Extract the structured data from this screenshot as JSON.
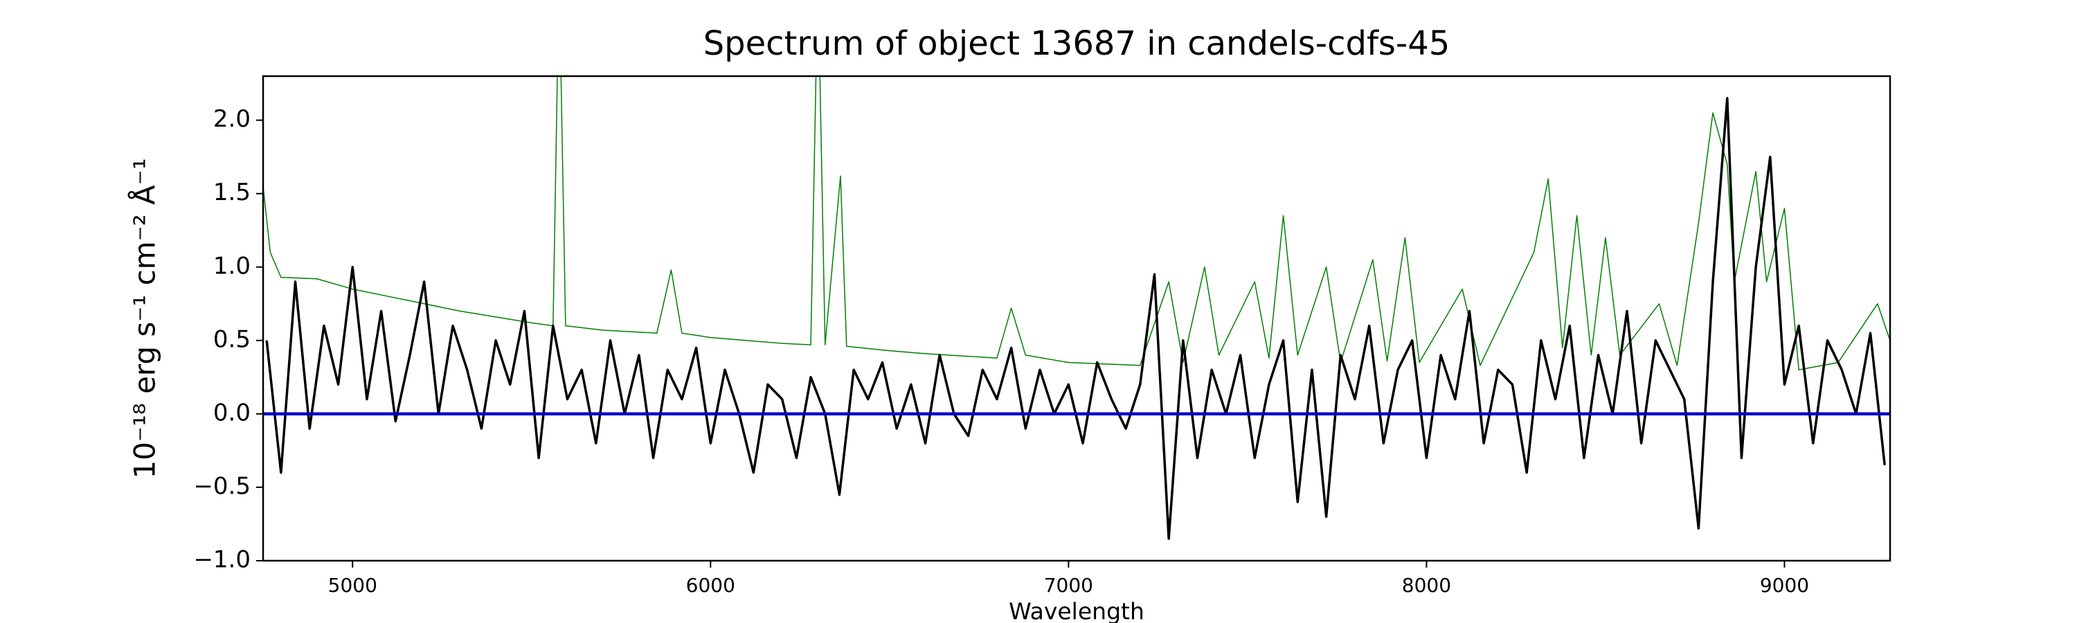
{
  "chart_data": {
    "type": "line",
    "title": "Spectrum of object 13687 in candels-cdfs-45",
    "xlabel": "Wavelength",
    "ylabel": "10⁻¹⁸ erg s⁻¹ cm⁻² Å⁻¹",
    "xlim": [
      4750,
      9295
    ],
    "ylim": [
      -1.0,
      2.3
    ],
    "xticks": [
      5000,
      6000,
      7000,
      8000,
      9000
    ],
    "yticks": [
      {
        "value": -1.0,
        "label": "−1.0"
      },
      {
        "value": -0.5,
        "label": "−0.5"
      },
      {
        "value": 0.0,
        "label": "0.0"
      },
      {
        "value": 0.5,
        "label": "0.5"
      },
      {
        "value": 1.0,
        "label": "1.0"
      },
      {
        "value": 1.5,
        "label": "1.5"
      },
      {
        "value": 2.0,
        "label": "2.0"
      }
    ],
    "series": [
      {
        "color": "#008000",
        "width": 1.5,
        "x": [
          4750,
          4770,
          4800,
          4900,
          5000,
          5100,
          5200,
          5300,
          5400,
          5500,
          5560,
          5577,
          5595,
          5700,
          5850,
          5890,
          5920,
          6000,
          6100,
          6200,
          6280,
          6300,
          6320,
          6363,
          6380,
          6500,
          6600,
          6800,
          6840,
          6880,
          7000,
          7200,
          7280,
          7320,
          7380,
          7420,
          7520,
          7560,
          7600,
          7640,
          7720,
          7760,
          7850,
          7890,
          7940,
          7980,
          8100,
          8150,
          8300,
          8340,
          8380,
          8420,
          8460,
          8500,
          8540,
          8650,
          8700,
          8760,
          8800,
          8840,
          8860,
          8920,
          8950,
          9000,
          9040,
          9150,
          9260,
          9295
        ],
        "values": [
          1.55,
          1.1,
          0.93,
          0.92,
          0.85,
          0.8,
          0.75,
          0.7,
          0.66,
          0.62,
          0.6,
          3.0,
          0.6,
          0.57,
          0.55,
          0.98,
          0.55,
          0.52,
          0.5,
          0.48,
          0.47,
          3.0,
          0.47,
          1.62,
          0.46,
          0.43,
          0.41,
          0.38,
          0.72,
          0.4,
          0.35,
          0.33,
          0.9,
          0.35,
          1.0,
          0.4,
          0.9,
          0.38,
          1.35,
          0.4,
          1.0,
          0.35,
          1.05,
          0.36,
          1.2,
          0.35,
          0.85,
          0.33,
          1.1,
          1.6,
          0.45,
          1.35,
          0.4,
          1.2,
          0.4,
          0.75,
          0.33,
          1.3,
          2.05,
          1.7,
          0.9,
          1.65,
          0.9,
          1.4,
          0.3,
          0.35,
          0.75,
          0.5
        ]
      },
      {
        "color": "#000000",
        "width": 3.5,
        "x": [
          4760,
          4800,
          4840,
          4880,
          4920,
          4960,
          5000,
          5040,
          5080,
          5120,
          5160,
          5200,
          5240,
          5280,
          5320,
          5360,
          5400,
          5440,
          5480,
          5520,
          5560,
          5600,
          5640,
          5680,
          5720,
          5760,
          5800,
          5840,
          5880,
          5920,
          5960,
          6000,
          6040,
          6080,
          6120,
          6160,
          6200,
          6240,
          6280,
          6320,
          6360,
          6400,
          6440,
          6480,
          6520,
          6560,
          6600,
          6640,
          6680,
          6720,
          6760,
          6800,
          6840,
          6880,
          6920,
          6960,
          7000,
          7040,
          7080,
          7120,
          7160,
          7200,
          7240,
          7280,
          7320,
          7360,
          7400,
          7440,
          7480,
          7520,
          7560,
          7600,
          7640,
          7680,
          7720,
          7760,
          7800,
          7840,
          7880,
          7920,
          7960,
          8000,
          8040,
          8080,
          8120,
          8160,
          8200,
          8240,
          8280,
          8320,
          8360,
          8400,
          8440,
          8480,
          8520,
          8560,
          8600,
          8640,
          8680,
          8720,
          8760,
          8800,
          8840,
          8880,
          8920,
          8960,
          9000,
          9040,
          9080,
          9120,
          9160,
          9200,
          9240,
          9280
        ],
        "values": [
          0.5,
          -0.4,
          0.9,
          -0.1,
          0.6,
          0.2,
          1.0,
          0.1,
          0.7,
          -0.05,
          0.4,
          0.9,
          0.0,
          0.6,
          0.3,
          -0.1,
          0.5,
          0.2,
          0.7,
          -0.3,
          0.6,
          0.1,
          0.3,
          -0.2,
          0.5,
          0.0,
          0.4,
          -0.3,
          0.3,
          0.1,
          0.45,
          -0.2,
          0.3,
          0.0,
          -0.4,
          0.2,
          0.1,
          -0.3,
          0.25,
          0.0,
          -0.55,
          0.3,
          0.1,
          0.35,
          -0.1,
          0.2,
          -0.2,
          0.4,
          0.0,
          -0.15,
          0.3,
          0.1,
          0.45,
          -0.1,
          0.3,
          0.0,
          0.2,
          -0.2,
          0.35,
          0.1,
          -0.1,
          0.2,
          0.95,
          -0.85,
          0.5,
          -0.3,
          0.3,
          0.0,
          0.4,
          -0.3,
          0.2,
          0.5,
          -0.6,
          0.3,
          -0.7,
          0.4,
          0.1,
          0.6,
          -0.2,
          0.3,
          0.5,
          -0.3,
          0.4,
          0.1,
          0.7,
          -0.2,
          0.3,
          0.2,
          -0.4,
          0.5,
          0.1,
          0.6,
          -0.3,
          0.4,
          0.0,
          0.7,
          -0.2,
          0.5,
          0.3,
          0.1,
          -0.78,
          0.9,
          2.15,
          -0.3,
          1.0,
          1.75,
          0.2,
          0.6,
          -0.2,
          0.5,
          0.3,
          0.0,
          0.55,
          -0.35
        ]
      },
      {
        "color": "#0000cc",
        "width": 4.5,
        "x": [
          4750,
          9295
        ],
        "values": [
          0,
          0
        ]
      }
    ]
  }
}
